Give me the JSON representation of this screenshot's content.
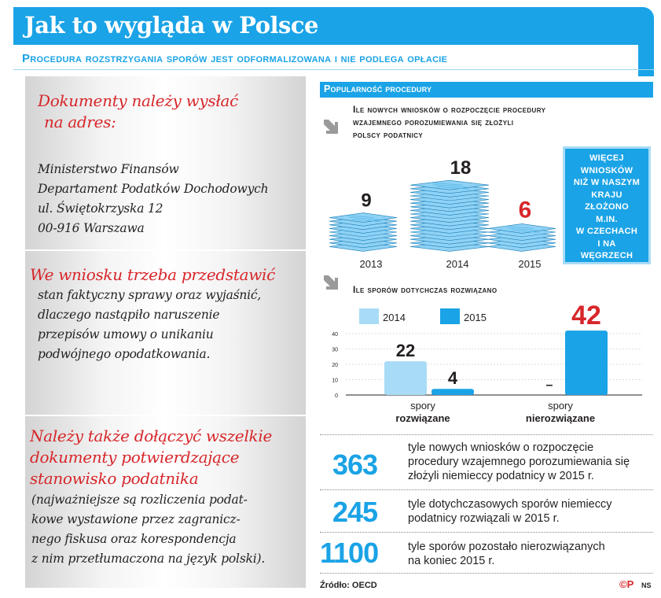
{
  "header": {
    "title": "Jak to wygląda w Polsce",
    "subtitle": "Procedura rozstrzygania sporów jest odformalizowana i nie podlega opłacie"
  },
  "left": {
    "address_heading": [
      "Dokumenty należy wysłać",
      "na adres:"
    ],
    "address_lines": [
      "Ministerstwo Finansów",
      "Departament Podatków Dochodowych",
      "ul. Świętokrzyska 12",
      "00-916 Warszawa"
    ],
    "request_heading": "We wniosku trzeba przedstawić",
    "request_body": [
      "stan faktyczny sprawy oraz wyjaśnić,",
      "dlaczego nastąpiło naruszenie",
      "przepisów umowy o unikaniu",
      "podwójnego opodatkowania."
    ],
    "attach_heading": [
      "Należy także dołączyć wszelkie",
      "dokumenty potwierdzające",
      "stanowisko podatnika"
    ],
    "attach_body": [
      "(najważniejsze są rozliczenia podat-",
      "kowe wystawione przez zagranicz-",
      "nego fiskusa oraz korespondencja",
      "z nim przetłumaczona na język polski)."
    ]
  },
  "section_label": "Popularność procedury",
  "q1": {
    "title": [
      "Ile nowych wniosków o rozpoczęcie procedury",
      "wzajemnego porozumiewania się złożyli",
      "polscy podatnicy"
    ]
  },
  "infobox": [
    "WIĘCEJ",
    "WNIOSKÓW",
    "NIŻ W NASZYM",
    "KRAJU",
    "ZŁOŻONO",
    "M.IN.",
    "W CZECHACH",
    "I NA",
    "WĘGRZECH"
  ],
  "q2": {
    "title": "Ile sporów dotychczas rozwiązano"
  },
  "chart_data": [
    {
      "type": "bar",
      "title": "Ile nowych wniosków o rozpoczęcie procedury wzajemnego porozumiewania się złożyli polscy podatnicy",
      "categories": [
        "2013",
        "2014",
        "2015"
      ],
      "values": [
        9,
        18,
        6
      ],
      "value_labels": [
        "9",
        "18",
        "6"
      ],
      "value_label_colors": [
        "#231f20",
        "#231f20",
        "#d7262a"
      ],
      "mark_style": "stacked paper sheets",
      "color": "#8fd2f5"
    },
    {
      "type": "bar",
      "title": "Ile sporów dotychczas rozwiązano",
      "categories": [
        "spory rozwiązane",
        "spory nierozwiązane"
      ],
      "category_lines": [
        [
          "spory",
          "rozwiązane"
        ],
        [
          "spory",
          "nierozwiązane"
        ]
      ],
      "series": [
        {
          "name": "2014",
          "values": [
            22,
            null
          ],
          "value_labels": [
            "22",
            "–"
          ],
          "color": "#a8dcf6"
        },
        {
          "name": "2015",
          "values": [
            4,
            42
          ],
          "value_labels": [
            "4",
            "42"
          ],
          "color": "#1aa3e6"
        }
      ],
      "yticks": [
        0,
        10,
        20,
        30,
        40
      ],
      "ylim": [
        0,
        42
      ],
      "grid": true,
      "legend": "top-left"
    }
  ],
  "stats": [
    {
      "number": "363",
      "text": [
        "tyle nowych wniosków o rozpoczęcie",
        "procedury wzajemnego porozumiewania się",
        "złożyli niemieccy podatnicy w 2015 r."
      ]
    },
    {
      "number": "245",
      "text": [
        "tyle dotychczasowych sporów niemieccy",
        "podatnicy rozwiązali w 2015 r."
      ]
    },
    {
      "number": "1100",
      "text": [
        "tyle sporów pozostało nierozwiązanych",
        "na koniec 2015 r."
      ]
    }
  ],
  "footer": {
    "source": "Źródło: OECD",
    "logo": "©P",
    "author": "NS"
  },
  "colors": {
    "accent": "#1aa3e6",
    "light_blue": "#a8dcf6",
    "red": "#d7262a"
  }
}
